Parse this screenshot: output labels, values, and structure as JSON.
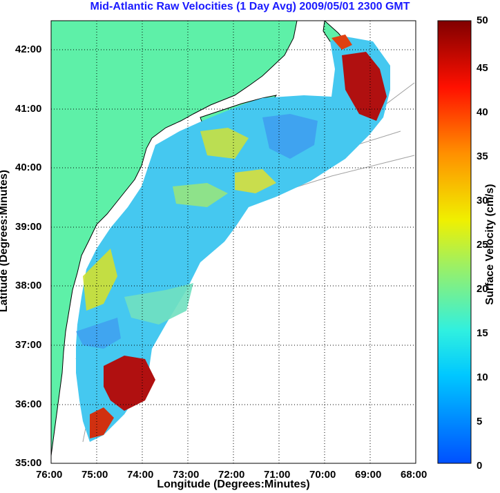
{
  "title": "Mid-Atlantic Raw Velocities (1 Day Avg) 2009/05/01 2300 GMT",
  "x_axis": {
    "label": "Longitude (Degrees:Minutes)",
    "ticks": [
      "76:00",
      "75:00",
      "74:00",
      "73:00",
      "72:00",
      "71:00",
      "70:00",
      "69:00",
      "68:00"
    ]
  },
  "y_axis": {
    "label": "Latitude (Degrees:Minutes)",
    "ticks": [
      "35:00",
      "36:00",
      "37:00",
      "38:00",
      "39:00",
      "40:00",
      "41:00",
      "42:00"
    ]
  },
  "colorbar": {
    "label": "Surface Velocity (cm/s)",
    "ticks": [
      "0",
      "5",
      "10",
      "15",
      "20",
      "25",
      "30",
      "35",
      "40",
      "45",
      "50"
    ],
    "min": 0,
    "max": 50
  },
  "colors": {
    "land": "#5ef0a8",
    "coastline": "#000000",
    "bathymetry": "#a0a0a0",
    "title": "#1a1aff"
  },
  "map": {
    "lon_range": [
      "76:00 W",
      "68:00 W"
    ],
    "lat_range": [
      "35:00 N",
      "42:30 N"
    ],
    "grid": "dotted",
    "land_regions": [
      "US East Coast (NY, NJ, DE, MD, VA, NC)",
      "Long Island",
      "Cape Cod"
    ]
  }
}
